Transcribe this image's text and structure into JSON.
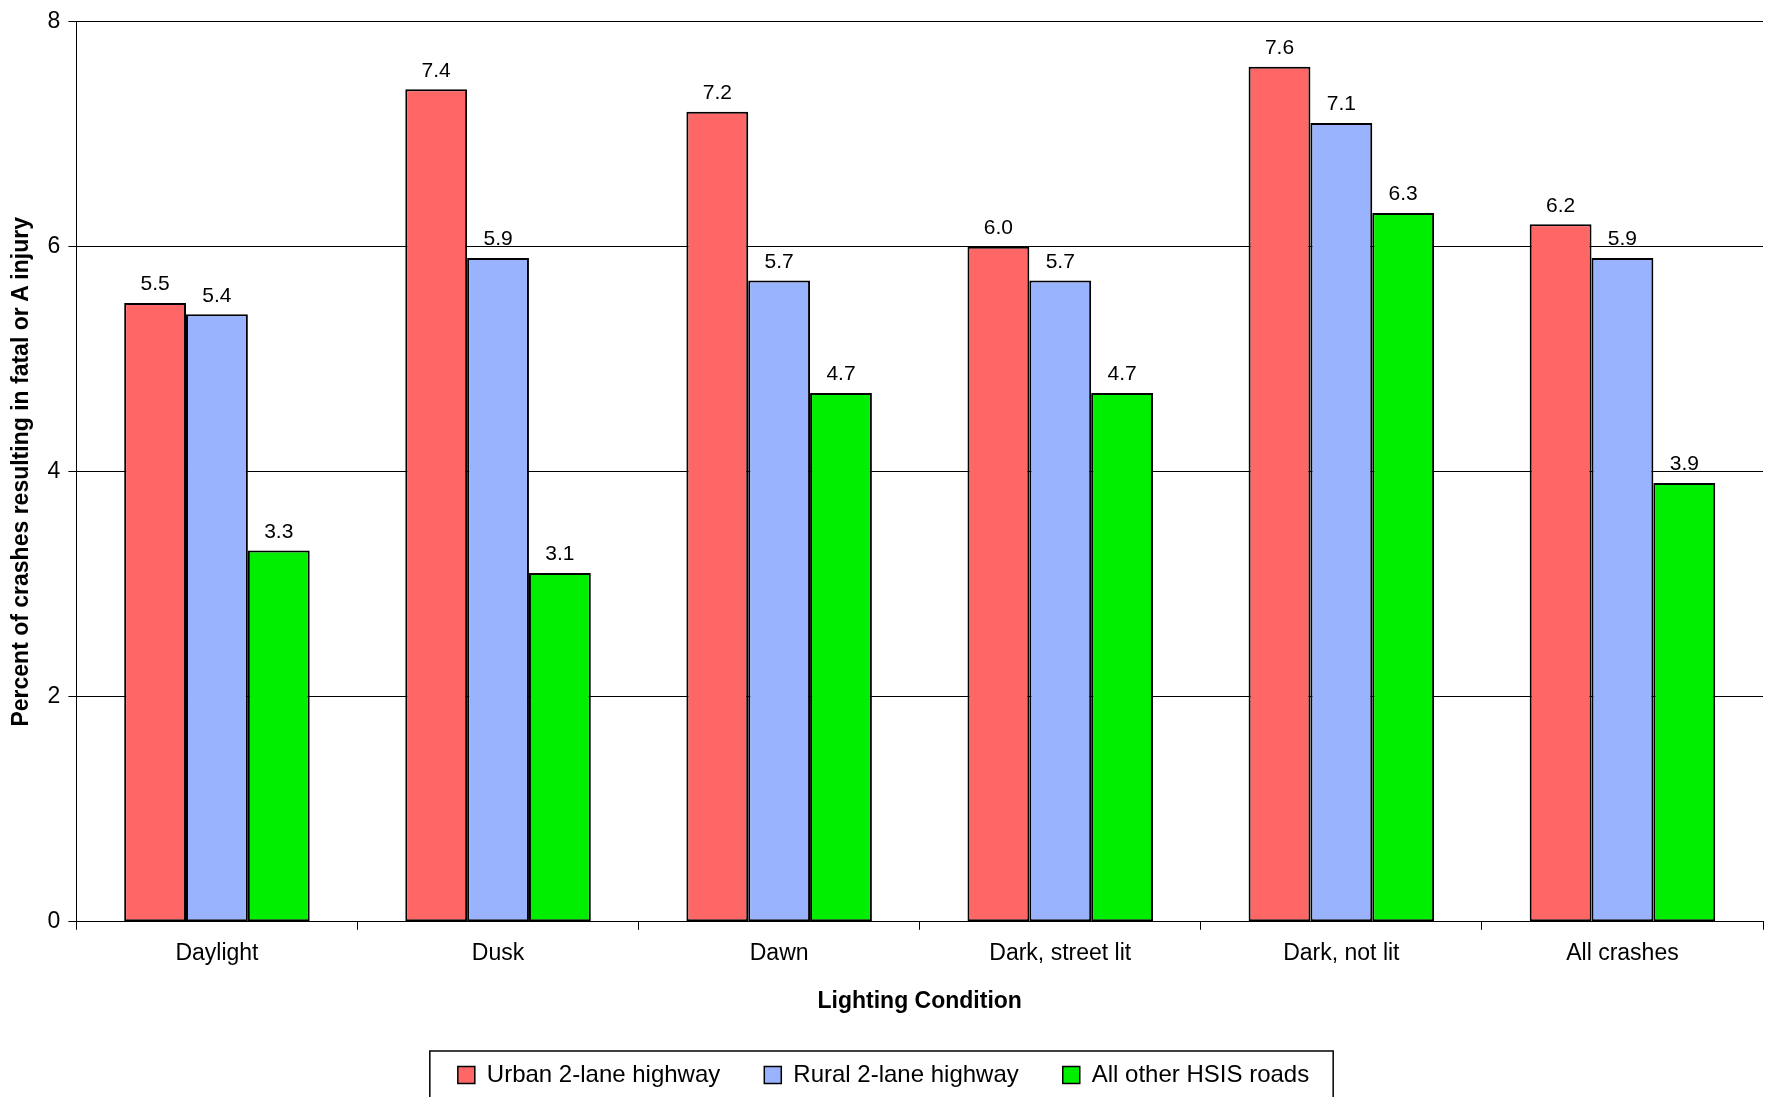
{
  "chart_data": {
    "type": "bar",
    "xlabel": "Lighting Condition",
    "ylabel": "Percent of crashes resulting in fatal or A injury",
    "categories": [
      "Daylight",
      "Dusk",
      "Dawn",
      "Dark, street lit",
      "Dark, not lit",
      "All crashes"
    ],
    "series": [
      {
        "name": "Urban 2-lane highway",
        "color": "#ff6666",
        "values": [
          5.5,
          7.4,
          7.2,
          6.0,
          7.6,
          6.2
        ],
        "value_labels": [
          "5.5",
          "7.4",
          "7.2",
          "6.0",
          "7.6",
          "6.2"
        ]
      },
      {
        "name": "Rural 2-lane highway",
        "color": "#99b3ff",
        "values": [
          5.4,
          5.9,
          5.7,
          5.7,
          7.1,
          5.9
        ],
        "value_labels": [
          "5.4",
          "5.9",
          "5.7",
          "5.7",
          "7.1",
          "5.9"
        ]
      },
      {
        "name": "All other HSIS roads",
        "color": "#00ee00",
        "values": [
          3.3,
          3.1,
          4.7,
          4.7,
          6.3,
          3.9
        ],
        "value_labels": [
          "3.3",
          "3.1",
          "4.7",
          "4.7",
          "6.3",
          "3.9"
        ]
      }
    ],
    "ylim": [
      0,
      8
    ],
    "yticks": [
      0,
      2,
      4,
      6,
      8
    ],
    "grid": "y",
    "legend": "bottom"
  }
}
